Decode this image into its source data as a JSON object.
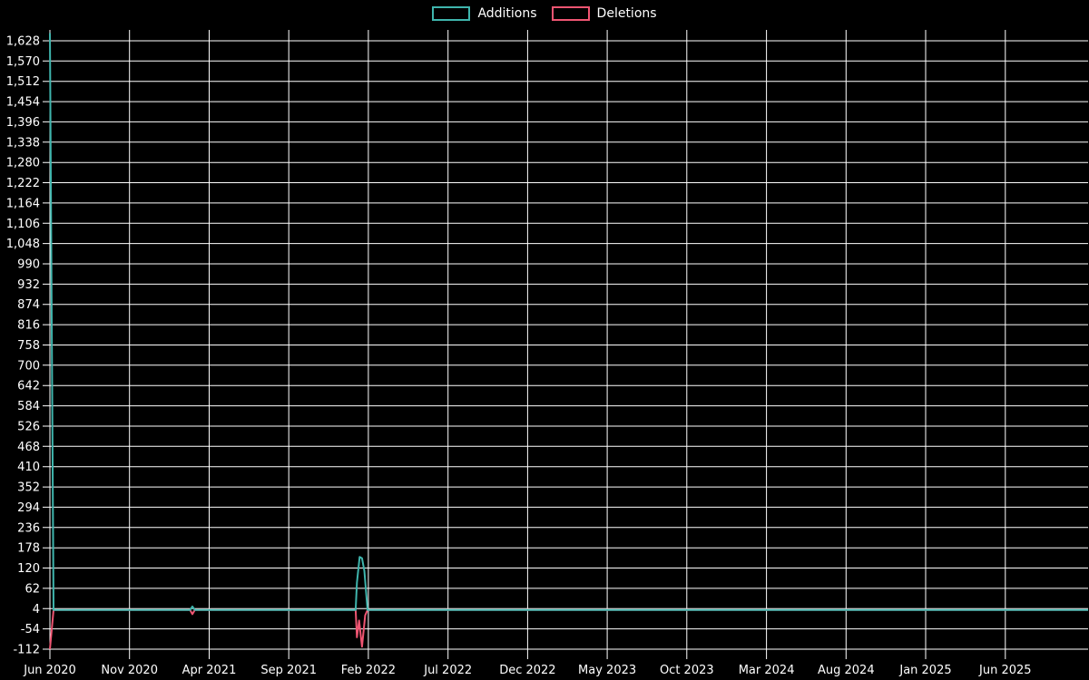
{
  "colors": {
    "background": "#000000",
    "grid": "#ffffff",
    "text": "#ffffff",
    "additions": "#3fb5ad",
    "deletions": "#ef5572"
  },
  "legend": {
    "items": [
      {
        "label": "Additions",
        "color": "#3fb5ad"
      },
      {
        "label": "Deletions",
        "color": "#ef5572"
      }
    ]
  },
  "chart_data": {
    "type": "line",
    "title": "",
    "xlabel": "",
    "ylabel": "",
    "grid": true,
    "legend_position": "top-center",
    "x_axis": {
      "unit": "months since Jun 2020",
      "range": [
        0,
        65.2
      ],
      "tick_positions": [
        0,
        5,
        10,
        15,
        20,
        25,
        30,
        35,
        40,
        45,
        50,
        55,
        60
      ],
      "tick_labels": [
        "Jun 2020",
        "Nov 2020",
        "Apr 2021",
        "Sep 2021",
        "Feb 2022",
        "Jul 2022",
        "Dec 2022",
        "May 2023",
        "Oct 2023",
        "Mar 2024",
        "Aug 2024",
        "Jan 2025",
        "Jun 2025"
      ]
    },
    "y_axis": {
      "range": [
        -112,
        1659
      ],
      "tick_min": -112,
      "tick_max": 1628,
      "tick_step": 58,
      "tick_labels": [
        "-112",
        "-54",
        "4",
        "62",
        "120",
        "178",
        "236",
        "294",
        "352",
        "410",
        "468",
        "526",
        "584",
        "642",
        "700",
        "758",
        "816",
        "874",
        "932",
        "990",
        "1,048",
        "1,106",
        "1,164",
        "1,222",
        "1,280",
        "1,338",
        "1,396",
        "1,454",
        "1,512",
        "1,570",
        "1,628"
      ]
    },
    "series": [
      {
        "name": "Additions",
        "color": "#3fb5ad",
        "points": [
          [
            0,
            1650
          ],
          [
            0.23,
            0
          ],
          [
            8.8,
            0
          ],
          [
            8.95,
            10
          ],
          [
            9.1,
            0
          ],
          [
            19.2,
            0
          ],
          [
            19.28,
            78
          ],
          [
            19.45,
            152
          ],
          [
            19.6,
            148
          ],
          [
            19.75,
            112
          ],
          [
            19.95,
            0
          ],
          [
            65.2,
            0
          ]
        ]
      },
      {
        "name": "Deletions",
        "color": "#ef5572",
        "points": [
          [
            0,
            -112
          ],
          [
            0.23,
            0
          ],
          [
            8.8,
            0
          ],
          [
            8.95,
            -12
          ],
          [
            9.1,
            0
          ],
          [
            19.2,
            0
          ],
          [
            19.28,
            -78
          ],
          [
            19.42,
            -30
          ],
          [
            19.6,
            -105
          ],
          [
            19.8,
            -15
          ],
          [
            19.95,
            0
          ],
          [
            65.2,
            0
          ]
        ]
      }
    ]
  }
}
